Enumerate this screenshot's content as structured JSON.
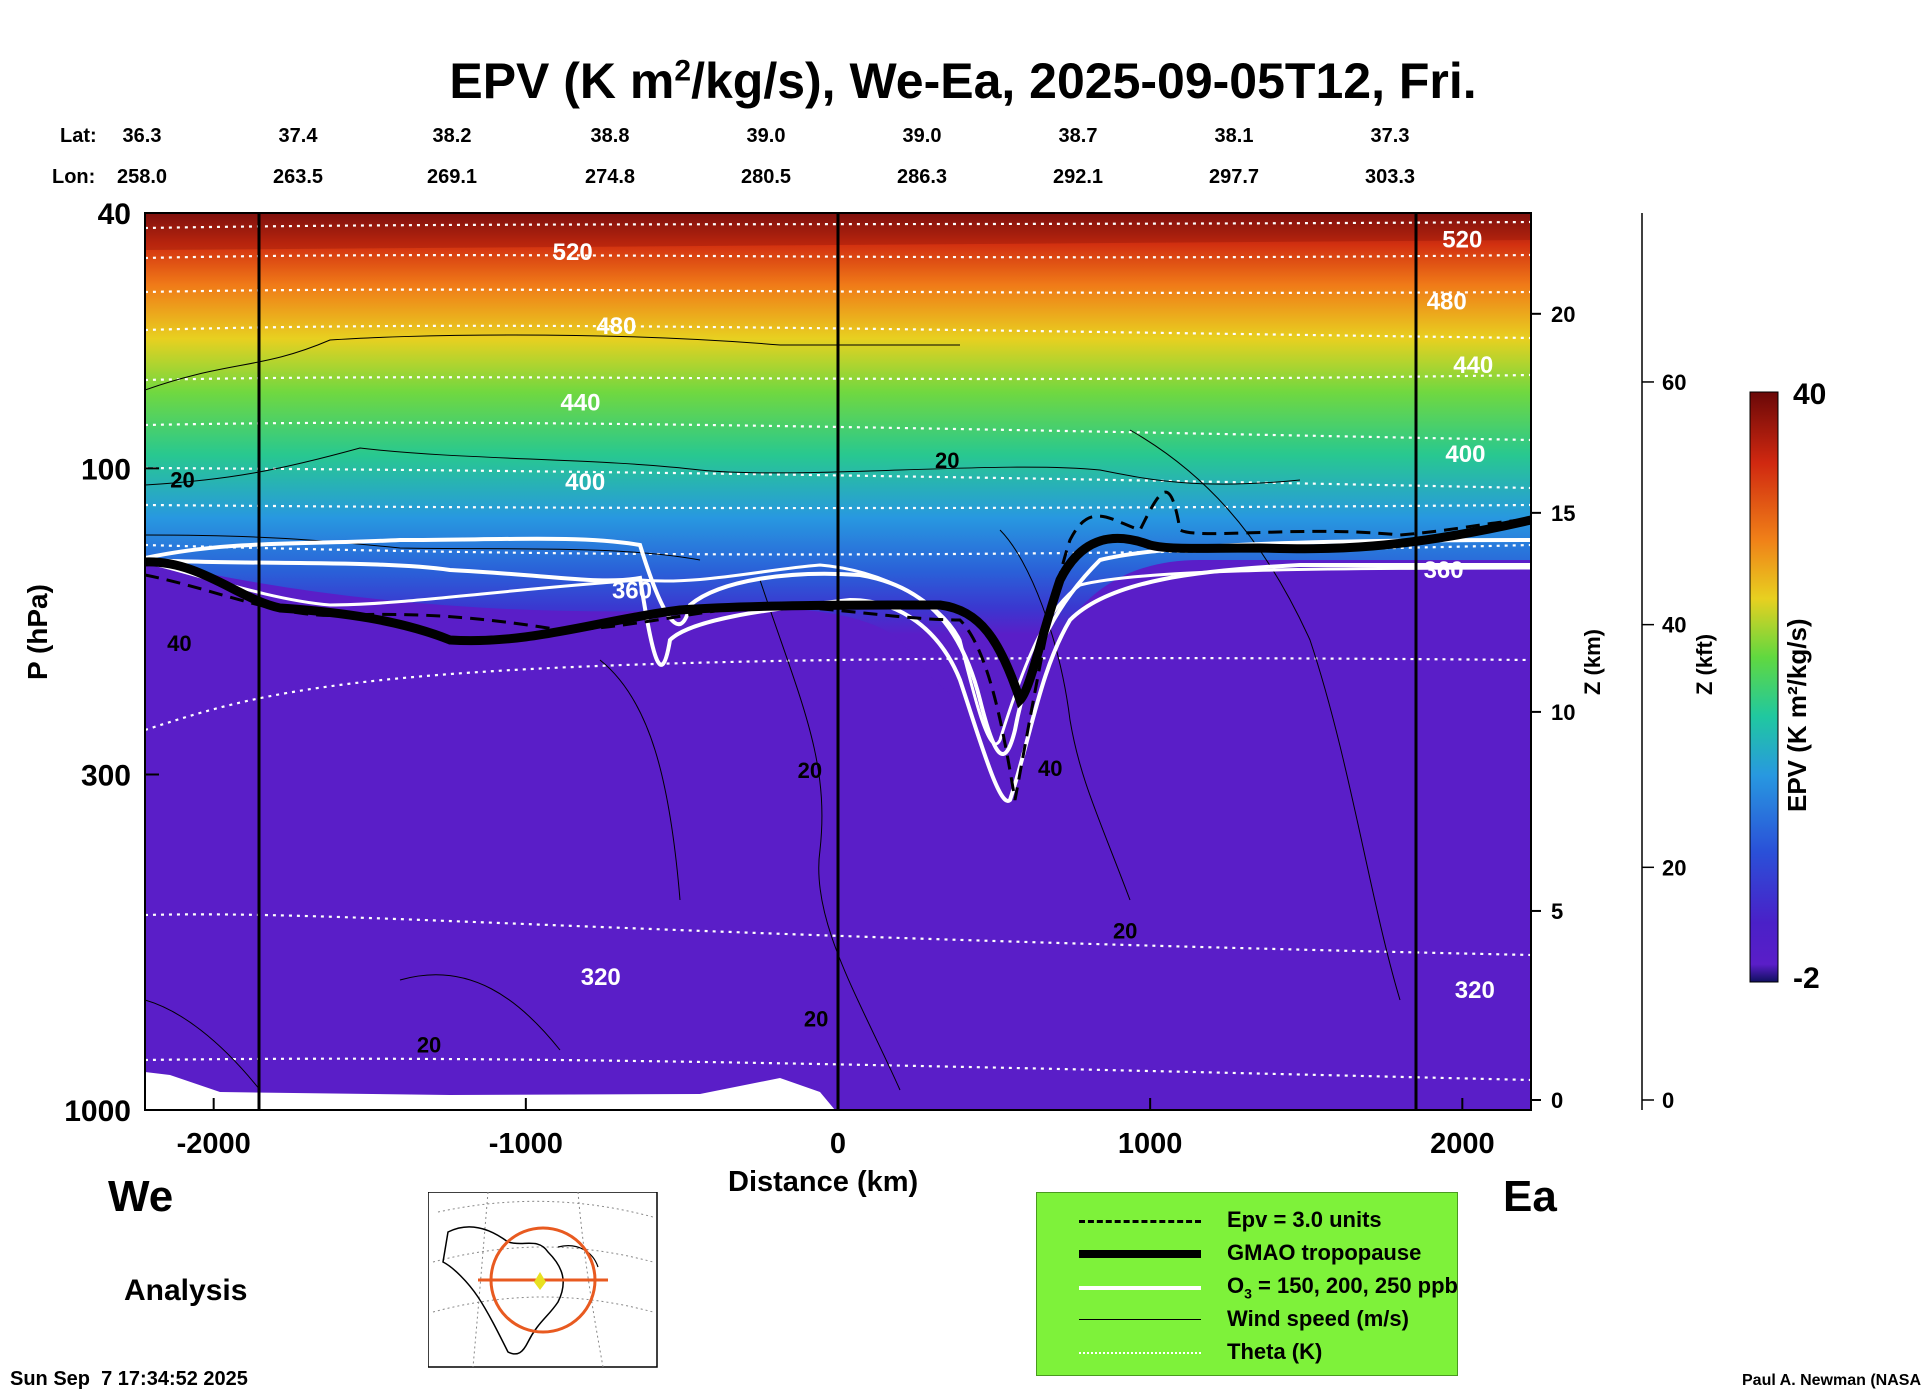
{
  "title": {
    "prefix": "EPV (K m",
    "sup": "2",
    "suffix": "/kg/s), We-Ea, 2025-09-05T12, Fri."
  },
  "lat_label": "Lat:",
  "lon_label": "Lon:",
  "lat_values": [
    "36.3",
    "37.4",
    "38.2",
    "38.8",
    "39.0",
    "39.0",
    "38.7",
    "38.1",
    "37.3"
  ],
  "lon_values": [
    "258.0",
    "263.5",
    "269.1",
    "274.8",
    "280.5",
    "286.3",
    "292.1",
    "297.7",
    "303.3"
  ],
  "left_axis_title": "P (hPa)",
  "z_km_title": "Z (km)",
  "z_kft_title": "Z (kft)",
  "colorbar_title": "EPV (K m²/kg/s)",
  "colorbar_max": "40",
  "colorbar_min": "-2",
  "x_axis_title": "Distance (km)",
  "west_label": "We",
  "east_label": "Ea",
  "analysis_label": "Analysis",
  "timestamp": "Sun Sep  7 17:34:52 2025",
  "credit": "Paul A. Newman (NASA",
  "legend": {
    "epv": "Epv = 3.0 units",
    "tropopause": "GMAO tropopause",
    "ozone_prefix": "O",
    "ozone_sub": "3",
    "ozone_suffix": " = 150, 200, 250 ppb",
    "wind": "Wind speed (m/s)",
    "theta": "Theta (K)"
  },
  "colors": {
    "background_low": "#5a1ec8",
    "legend_bg": "#7ef23a",
    "tropopause": "#000000",
    "ozone": "#ffffff"
  },
  "chart_data": {
    "type": "heatmap",
    "x_distance_km": {
      "range": [
        -2220,
        2220
      ],
      "ticks": [
        -2000,
        -1000,
        0,
        1000,
        2000
      ]
    },
    "pressure_hPa": {
      "range": [
        1000,
        40
      ],
      "log": true,
      "ticks": [
        1000,
        300,
        100,
        40
      ]
    },
    "z_km_ticks": [
      0,
      5,
      10,
      15,
      20
    ],
    "z_kft_ticks": [
      0,
      20,
      40,
      60
    ],
    "colorbar": {
      "min": -2,
      "max": 40
    },
    "theta_labels": [
      {
        "text": "520",
        "x": -850,
        "p": 46
      },
      {
        "text": "480",
        "x": -710,
        "p": 60
      },
      {
        "text": "440",
        "x": -825,
        "p": 79
      },
      {
        "text": "400",
        "x": -810,
        "p": 105
      },
      {
        "text": "360",
        "x": -660,
        "p": 155
      },
      {
        "text": "320",
        "x": -760,
        "p": 620
      },
      {
        "text": "520",
        "x": 2000,
        "p": 44
      },
      {
        "text": "480",
        "x": 1950,
        "p": 55
      },
      {
        "text": "440",
        "x": 2035,
        "p": 69
      },
      {
        "text": "400",
        "x": 2010,
        "p": 95
      },
      {
        "text": "360",
        "x": 1940,
        "p": 144
      },
      {
        "text": "320",
        "x": 2040,
        "p": 650
      }
    ],
    "wind_labels": [
      {
        "text": "20",
        "x": -2100,
        "p": 104
      },
      {
        "text": "40",
        "x": -2110,
        "p": 187
      },
      {
        "text": "20",
        "x": -90,
        "p": 295
      },
      {
        "text": "20",
        "x": 350,
        "p": 97
      },
      {
        "text": "40",
        "x": 680,
        "p": 293
      },
      {
        "text": "20",
        "x": 920,
        "p": 525
      },
      {
        "text": "20",
        "x": -1310,
        "p": 790
      },
      {
        "text": "20",
        "x": -70,
        "p": 720
      }
    ]
  }
}
